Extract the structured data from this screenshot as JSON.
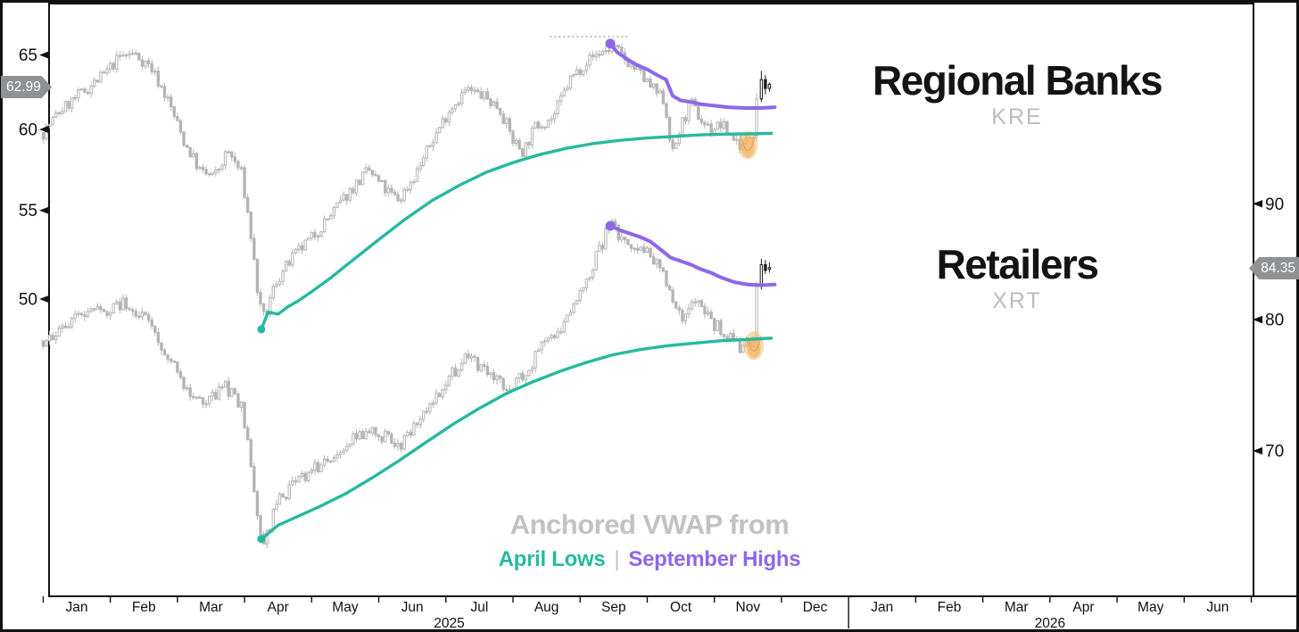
{
  "page": {
    "titles": [
      {
        "name": "Regional Banks",
        "ticker": "KRE"
      },
      {
        "name": "Retailers",
        "ticker": "XRT"
      }
    ],
    "annotation": {
      "line1": "Anchored VWAP from",
      "april": "April Lows",
      "separator": "|",
      "september": "September Highs"
    },
    "badges": {
      "kre_last": "62.99",
      "xrt_last": "84.35"
    }
  },
  "colors": {
    "teal": "#26b99f",
    "purple": "#8e67e9",
    "candle_gray": "#b5b5b5",
    "candle_black": "#1a1a1a",
    "highlight_orange": "#f2b567",
    "highlight_edge": "#dd9d4e",
    "badge_gray": "#8f9193",
    "axis_black": "#111111",
    "ticker_gray": "#bcbcbc",
    "annotation_gray": "#c2c2c2",
    "dotted_gray": "#9c9c9c"
  },
  "x_axis": {
    "months": [
      "Jan",
      "Feb",
      "Mar",
      "Apr",
      "May",
      "Jun",
      "Jul",
      "Aug",
      "Sep",
      "Oct",
      "Nov",
      "Dec",
      "Jan",
      "Feb",
      "Mar",
      "Apr",
      "May",
      "Jun"
    ],
    "years": [
      {
        "label": "2025",
        "t": 6.05
      },
      {
        "label": "2026",
        "t": 15.0
      }
    ]
  },
  "chart_data": [
    {
      "type": "candlestick",
      "name": "Regional Banks",
      "ticker": "KRE",
      "y_axis": "left",
      "y_ticks": [
        65,
        60,
        55,
        50
      ],
      "last_price": 62.99,
      "seed": 7,
      "gen_end_t": 10.6,
      "price_path": [
        [
          0,
          59.8
        ],
        [
          0.25,
          61.2
        ],
        [
          0.55,
          62.3
        ],
        [
          0.9,
          63.6
        ],
        [
          1.15,
          64.9
        ],
        [
          1.35,
          65.1
        ],
        [
          1.6,
          64.2
        ],
        [
          1.85,
          62.0
        ],
        [
          2.1,
          59.2
        ],
        [
          2.35,
          57.3
        ],
        [
          2.55,
          57.0
        ],
        [
          2.75,
          58.6
        ],
        [
          2.95,
          57.3
        ],
        [
          3.08,
          54.0
        ],
        [
          3.22,
          49.6
        ],
        [
          3.3,
          48.9
        ],
        [
          3.45,
          50.8
        ],
        [
          3.7,
          52.2
        ],
        [
          4.0,
          53.4
        ],
        [
          4.3,
          54.8
        ],
        [
          4.6,
          56.3
        ],
        [
          4.85,
          57.4
        ],
        [
          5.1,
          56.2
        ],
        [
          5.3,
          55.6
        ],
        [
          5.55,
          57.2
        ],
        [
          5.8,
          59.3
        ],
        [
          6.05,
          61.3
        ],
        [
          6.3,
          62.6
        ],
        [
          6.55,
          62.2
        ],
        [
          6.8,
          61.4
        ],
        [
          7.0,
          59.3
        ],
        [
          7.15,
          58.6
        ],
        [
          7.35,
          60.3
        ],
        [
          7.6,
          60.8
        ],
        [
          7.85,
          63.3
        ],
        [
          8.1,
          64.6
        ],
        [
          8.3,
          65.2
        ],
        [
          8.5,
          65.5
        ],
        [
          8.65,
          64.8
        ],
        [
          8.85,
          63.9
        ],
        [
          9.05,
          62.8
        ],
        [
          9.25,
          61.9
        ],
        [
          9.38,
          58.4
        ],
        [
          9.5,
          60.2
        ],
        [
          9.65,
          61.7
        ],
        [
          9.8,
          60.6
        ],
        [
          9.95,
          60.0
        ],
        [
          10.1,
          60.3
        ],
        [
          10.25,
          59.6
        ],
        [
          10.42,
          58.9
        ],
        [
          10.55,
          59.8
        ]
      ],
      "recent_candles": [
        {
          "t": 10.63,
          "o": 59.6,
          "c": 62.0,
          "h": 62.4,
          "l": 59.2,
          "color": "gray"
        },
        {
          "t": 10.7,
          "o": 62.0,
          "c": 63.3,
          "h": 63.9,
          "l": 61.8,
          "color": "black"
        },
        {
          "t": 10.76,
          "o": 63.3,
          "c": 62.7,
          "h": 63.6,
          "l": 62.3,
          "color": "black"
        },
        {
          "t": 10.82,
          "o": 62.7,
          "c": 62.99,
          "h": 63.1,
          "l": 62.5,
          "color": "black"
        }
      ],
      "vwap_april_lows": {
        "anchor": {
          "t": 3.25,
          "price": 48.4
        },
        "path": [
          [
            3.25,
            48.4
          ],
          [
            3.35,
            49.3
          ],
          [
            3.5,
            49.2
          ],
          [
            3.65,
            49.6
          ],
          [
            3.8,
            49.9
          ],
          [
            4.0,
            50.4
          ],
          [
            4.3,
            51.2
          ],
          [
            4.6,
            52.1
          ],
          [
            5.0,
            53.3
          ],
          [
            5.4,
            54.5
          ],
          [
            5.8,
            55.6
          ],
          [
            6.2,
            56.5
          ],
          [
            6.6,
            57.3
          ],
          [
            7.0,
            57.9
          ],
          [
            7.4,
            58.4
          ],
          [
            7.8,
            58.8
          ],
          [
            8.2,
            59.1
          ],
          [
            8.6,
            59.3
          ],
          [
            9.0,
            59.45
          ],
          [
            9.4,
            59.55
          ],
          [
            9.8,
            59.65
          ],
          [
            10.2,
            59.7
          ],
          [
            10.6,
            59.72
          ],
          [
            10.85,
            59.75
          ]
        ]
      },
      "vwap_september_highs": {
        "anchor": {
          "t": 8.45,
          "price": 65.8
        },
        "path": [
          [
            8.45,
            65.8
          ],
          [
            8.55,
            65.2
          ],
          [
            8.7,
            64.7
          ],
          [
            8.85,
            64.3
          ],
          [
            9.0,
            64.0
          ],
          [
            9.15,
            63.6
          ],
          [
            9.28,
            63.3
          ],
          [
            9.38,
            62.2
          ],
          [
            9.5,
            61.9
          ],
          [
            9.65,
            61.8
          ],
          [
            9.8,
            61.65
          ],
          [
            10.0,
            61.55
          ],
          [
            10.2,
            61.45
          ],
          [
            10.45,
            61.4
          ],
          [
            10.7,
            61.4
          ],
          [
            10.9,
            61.45
          ]
        ]
      },
      "high_dotted": {
        "price": 66.3,
        "t0": 7.55,
        "t1": 8.72
      },
      "highlight_blob": {
        "t": 10.5,
        "price": 59.0
      }
    },
    {
      "type": "candlestick",
      "name": "Retailers",
      "ticker": "XRT",
      "y_axis": "right",
      "y_ticks": [
        90,
        80,
        70
      ],
      "last_price": 84.35,
      "seed": 23,
      "gen_end_t": 10.6,
      "price_path": [
        [
          0,
          78.3
        ],
        [
          0.3,
          79.6
        ],
        [
          0.6,
          80.2
        ],
        [
          0.95,
          80.9
        ],
        [
          1.2,
          81.4
        ],
        [
          1.45,
          80.6
        ],
        [
          1.7,
          78.6
        ],
        [
          1.95,
          76.2
        ],
        [
          2.2,
          74.3
        ],
        [
          2.45,
          73.6
        ],
        [
          2.7,
          74.8
        ],
        [
          2.95,
          73.2
        ],
        [
          3.08,
          69.5
        ],
        [
          3.22,
          64.5
        ],
        [
          3.3,
          63.8
        ],
        [
          3.5,
          66.5
        ],
        [
          3.75,
          67.8
        ],
        [
          4.0,
          68.6
        ],
        [
          4.3,
          69.8
        ],
        [
          4.6,
          70.8
        ],
        [
          4.85,
          71.6
        ],
        [
          5.1,
          70.9
        ],
        [
          5.3,
          70.3
        ],
        [
          5.55,
          71.8
        ],
        [
          5.8,
          73.6
        ],
        [
          6.05,
          75.6
        ],
        [
          6.3,
          76.8
        ],
        [
          6.55,
          76.2
        ],
        [
          6.8,
          75.2
        ],
        [
          7.0,
          74.6
        ],
        [
          7.2,
          76.0
        ],
        [
          7.45,
          77.8
        ],
        [
          7.7,
          79.3
        ],
        [
          7.95,
          81.5
        ],
        [
          8.2,
          84.8
        ],
        [
          8.45,
          88.0
        ],
        [
          8.6,
          87.2
        ],
        [
          8.8,
          86.3
        ],
        [
          9.0,
          85.6
        ],
        [
          9.2,
          84.2
        ],
        [
          9.4,
          81.2
        ],
        [
          9.55,
          80.2
        ],
        [
          9.7,
          81.8
        ],
        [
          9.85,
          80.8
        ],
        [
          10.0,
          79.6
        ],
        [
          10.15,
          78.9
        ],
        [
          10.3,
          78.2
        ],
        [
          10.45,
          77.6
        ],
        [
          10.58,
          78.4
        ]
      ],
      "recent_candles": [
        {
          "t": 10.63,
          "o": 77.8,
          "c": 82.8,
          "h": 83.2,
          "l": 77.5,
          "color": "gray"
        },
        {
          "t": 10.7,
          "o": 82.8,
          "c": 84.6,
          "h": 85.1,
          "l": 82.5,
          "color": "black"
        },
        {
          "t": 10.76,
          "o": 84.6,
          "c": 84.1,
          "h": 85.0,
          "l": 83.8,
          "color": "black"
        },
        {
          "t": 10.82,
          "o": 84.2,
          "c": 84.35,
          "h": 84.8,
          "l": 83.9,
          "color": "black"
        }
      ],
      "vwap_april_lows": {
        "anchor": {
          "t": 3.25,
          "price": 64.0
        },
        "path": [
          [
            3.25,
            64.0
          ],
          [
            3.5,
            64.9
          ],
          [
            3.8,
            65.5
          ],
          [
            4.1,
            66.1
          ],
          [
            4.5,
            67.0
          ],
          [
            4.9,
            68.1
          ],
          [
            5.3,
            69.3
          ],
          [
            5.7,
            70.6
          ],
          [
            6.1,
            71.9
          ],
          [
            6.5,
            73.1
          ],
          [
            6.9,
            74.2
          ],
          [
            7.3,
            75.1
          ],
          [
            7.7,
            75.9
          ],
          [
            8.1,
            76.6
          ],
          [
            8.5,
            77.2
          ],
          [
            8.9,
            77.6
          ],
          [
            9.3,
            77.9
          ],
          [
            9.7,
            78.1
          ],
          [
            10.1,
            78.3
          ],
          [
            10.5,
            78.4
          ],
          [
            10.85,
            78.5
          ]
        ]
      },
      "vwap_september_highs": {
        "anchor": {
          "t": 8.45,
          "price": 88.0
        },
        "path": [
          [
            8.45,
            88.0
          ],
          [
            8.6,
            87.6
          ],
          [
            8.75,
            87.3
          ],
          [
            8.9,
            87.0
          ],
          [
            9.05,
            86.6
          ],
          [
            9.2,
            85.9
          ],
          [
            9.35,
            85.2
          ],
          [
            9.5,
            84.9
          ],
          [
            9.65,
            84.6
          ],
          [
            9.8,
            84.2
          ],
          [
            9.95,
            83.9
          ],
          [
            10.1,
            83.5
          ],
          [
            10.3,
            83.1
          ],
          [
            10.5,
            82.9
          ],
          [
            10.7,
            82.85
          ],
          [
            10.9,
            82.9
          ]
        ]
      },
      "high_dotted": null,
      "highlight_blob": {
        "t": 10.59,
        "price": 77.9
      }
    }
  ]
}
